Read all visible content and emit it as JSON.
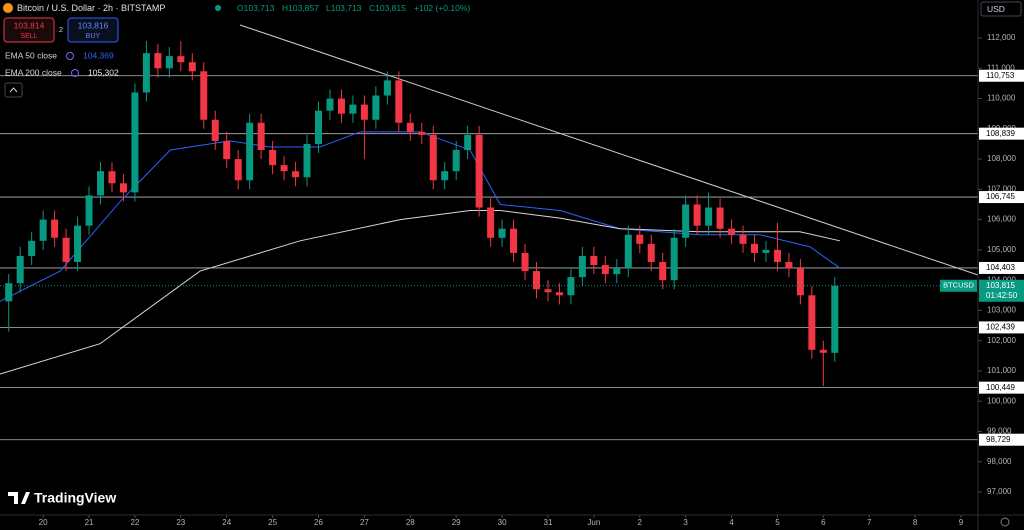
{
  "ui": {
    "title": "Bitcoin / U.S. Dollar · 2h · BITSTAMP",
    "ohlc": [
      "O103,713",
      "H103,857",
      "L103,713",
      "C103,815"
    ],
    "change": "+102 (+0.10%)",
    "sell": {
      "price": "103,814",
      "label": "SELL"
    },
    "spread": "2",
    "buy": {
      "price": "103,816",
      "label": "BUY"
    },
    "brand": "TradingView"
  },
  "chart_data": {
    "type": "candlestick",
    "colors": {
      "up": "#089981",
      "down": "#f23645"
    },
    "x": [
      -0.75,
      -0.5,
      -0.25,
      0,
      0.25,
      0.5,
      0.75,
      1,
      1.25,
      1.5,
      1.75,
      2,
      2.25,
      2.5,
      2.75,
      3,
      3.25,
      3.5,
      3.75,
      4,
      4.25,
      4.5,
      4.75,
      5,
      5.25,
      5.5,
      5.75,
      6,
      6.25,
      6.5,
      6.75,
      7,
      7.25,
      7.5,
      7.75,
      8,
      8.25,
      8.5,
      8.75,
      9,
      9.25,
      9.5,
      9.75,
      10,
      10.25,
      10.5,
      10.75,
      11,
      11.25,
      11.5,
      11.75,
      12,
      12.25,
      12.5,
      12.75,
      13,
      13.25,
      13.5,
      13.75,
      14,
      14.25,
      14.5,
      14.75,
      15,
      15.25,
      15.5,
      15.75,
      16,
      16.25,
      16.5,
      16.75,
      17,
      17.25
    ],
    "open": [
      103300,
      103900,
      104800,
      105300,
      106000,
      105400,
      104600,
      105800,
      106800,
      107600,
      107200,
      106900,
      110200,
      111500,
      111000,
      111400,
      111200,
      110900,
      109300,
      108600,
      108000,
      107300,
      109200,
      108300,
      107800,
      107600,
      107400,
      108500,
      109600,
      110000,
      109500,
      109800,
      109300,
      110100,
      110600,
      109200,
      108900,
      108800,
      107300,
      107600,
      108300,
      108800,
      106400,
      105400,
      105700,
      104900,
      104300,
      103700,
      103600,
      103500,
      104100,
      104800,
      104500,
      104200,
      104400,
      105500,
      105200,
      104600,
      104000,
      105400,
      106500,
      105800,
      106400,
      105700,
      105500,
      105200,
      104900,
      105000,
      104600,
      104400,
      103500,
      101700,
      101600
    ],
    "high": [
      104200,
      105100,
      105600,
      106300,
      106300,
      105700,
      106100,
      107100,
      107900,
      107900,
      107500,
      110500,
      111900,
      111800,
      111700,
      111900,
      111500,
      111200,
      109600,
      108900,
      108300,
      109500,
      109500,
      108600,
      108100,
      107900,
      108800,
      109900,
      110300,
      110300,
      110100,
      110100,
      110400,
      110900,
      110900,
      109500,
      109200,
      109100,
      107900,
      108600,
      109100,
      109100,
      106700,
      106000,
      106000,
      105200,
      104600,
      104000,
      103900,
      104400,
      105100,
      105100,
      104800,
      104700,
      105800,
      105800,
      105500,
      104900,
      105700,
      106800,
      106800,
      106900,
      106700,
      106000,
      105800,
      105500,
      105300,
      105900,
      104900,
      104700,
      103800,
      102000,
      104100
    ],
    "low": [
      102300,
      103600,
      104500,
      105000,
      105100,
      104300,
      104300,
      105500,
      106500,
      106900,
      106600,
      106600,
      109900,
      110700,
      110700,
      110900,
      110600,
      109000,
      108300,
      107700,
      107000,
      107000,
      108000,
      107500,
      107300,
      107100,
      107100,
      108200,
      109300,
      109200,
      109200,
      108000,
      109000,
      109800,
      108900,
      108600,
      108500,
      107000,
      107000,
      107300,
      108000,
      106100,
      105100,
      105100,
      104600,
      104000,
      103400,
      103300,
      103200,
      103200,
      103800,
      104200,
      103900,
      103900,
      104100,
      104900,
      104300,
      103700,
      103700,
      105100,
      105500,
      105500,
      105400,
      105200,
      104900,
      104600,
      104600,
      104300,
      104100,
      103200,
      101400,
      100500,
      101300
    ],
    "close": [
      103900,
      104800,
      105300,
      106000,
      105400,
      104600,
      105800,
      106800,
      107600,
      107200,
      106900,
      110200,
      111500,
      111000,
      111400,
      111200,
      110900,
      109300,
      108600,
      108000,
      107300,
      109200,
      108300,
      107800,
      107600,
      107400,
      108500,
      109600,
      110000,
      109500,
      109800,
      109300,
      110100,
      110600,
      109200,
      108900,
      108800,
      107300,
      107600,
      108300,
      108800,
      106400,
      105400,
      105700,
      104900,
      104300,
      103700,
      103600,
      103500,
      104100,
      104800,
      104500,
      104200,
      104400,
      105500,
      105200,
      104600,
      104000,
      105400,
      106500,
      105800,
      106400,
      105700,
      105500,
      105200,
      104900,
      105000,
      104600,
      104400,
      103500,
      101700,
      101600,
      103815
    ],
    "xlim": [
      -0.94,
      20.37
    ],
    "ylim": [
      96242,
      113255
    ],
    "yticks": [
      {
        "value": 112000,
        "label": "112,000"
      },
      {
        "value": 111000,
        "label": "111,000"
      },
      {
        "value": 110000,
        "label": "110,000"
      },
      {
        "value": 109000,
        "label": "109,000"
      },
      {
        "value": 108000,
        "label": "108,000"
      },
      {
        "value": 107000,
        "label": "107,000"
      },
      {
        "value": 106000,
        "label": "106,000"
      },
      {
        "value": 105000,
        "label": "105,000"
      },
      {
        "value": 104000,
        "label": "104,000"
      },
      {
        "value": 103000,
        "label": "103,000"
      },
      {
        "value": 102000,
        "label": "102,000"
      },
      {
        "value": 101000,
        "label": "101,000"
      },
      {
        "value": 100000,
        "label": "100,000"
      },
      {
        "value": 99000,
        "label": "99,000"
      },
      {
        "value": 98000,
        "label": "98,000"
      },
      {
        "value": 97000,
        "label": "97,000"
      }
    ],
    "xticks": [
      {
        "value": 0,
        "label": "20"
      },
      {
        "value": 1,
        "label": "21"
      },
      {
        "value": 2,
        "label": "22"
      },
      {
        "value": 3,
        "label": "23"
      },
      {
        "value": 4,
        "label": "24"
      },
      {
        "value": 5,
        "label": "25"
      },
      {
        "value": 6,
        "label": "26"
      },
      {
        "value": 7,
        "label": "27"
      },
      {
        "value": 8,
        "label": "28"
      },
      {
        "value": 9,
        "label": "29"
      },
      {
        "value": 10,
        "label": "30"
      },
      {
        "value": 11,
        "label": "31"
      },
      {
        "value": 12,
        "label": "Jun"
      },
      {
        "value": 13,
        "label": "2"
      },
      {
        "value": 14,
        "label": "3"
      },
      {
        "value": 15,
        "label": "4"
      },
      {
        "value": 16,
        "label": "5"
      },
      {
        "value": 17,
        "label": "6"
      },
      {
        "value": 18,
        "label": "7"
      },
      {
        "value": 19,
        "label": "8"
      },
      {
        "value": 20,
        "label": "9"
      }
    ],
    "series": [
      {
        "name": "EMA 50 close",
        "legend_value": "104,369",
        "color": "#2962ff",
        "x": [
          -0.94,
          0.37,
          1.68,
          2.77,
          4.07,
          4.94,
          6.03,
          6.91,
          8.21,
          9.3,
          9.96,
          11.26,
          12.57,
          14.31,
          15.62,
          16.71,
          17.36
        ],
        "values": [
          103300,
          104300,
          106600,
          108300,
          108600,
          108400,
          108400,
          108900,
          108900,
          108300,
          106500,
          106300,
          105700,
          105500,
          105500,
          105100,
          104400
        ]
      },
      {
        "name": "EMA 200 close",
        "legend_value": "105,302",
        "color": "#d8d8d8",
        "x": [
          -0.94,
          1.24,
          3.42,
          5.6,
          7.78,
          9.3,
          9.96,
          11.26,
          12.57,
          14.31,
          16.49,
          17.36
        ],
        "values": [
          100900,
          101900,
          104300,
          105300,
          106000,
          106300,
          106300,
          106050,
          105700,
          105600,
          105600,
          105300
        ]
      }
    ],
    "trendline": {
      "color": "#cfcfcf",
      "x": [
        4.29,
        20.37
      ],
      "values": [
        112430,
        104170
      ]
    },
    "levels": [
      {
        "value": 110753,
        "label": "110,753"
      },
      {
        "value": 108839,
        "label": "108,839"
      },
      {
        "value": 106745,
        "label": "106,745"
      },
      {
        "value": 104403,
        "label": "104,403"
      },
      {
        "value": 102439,
        "label": "102,439"
      },
      {
        "value": 100449,
        "label": "100,449"
      },
      {
        "value": 98729,
        "label": "98,729"
      }
    ],
    "last": {
      "name": "BTCUSD",
      "value": 103815,
      "label": "103,815",
      "countdown": "01:42:50",
      "color": "#089981"
    },
    "currency": "USD"
  }
}
